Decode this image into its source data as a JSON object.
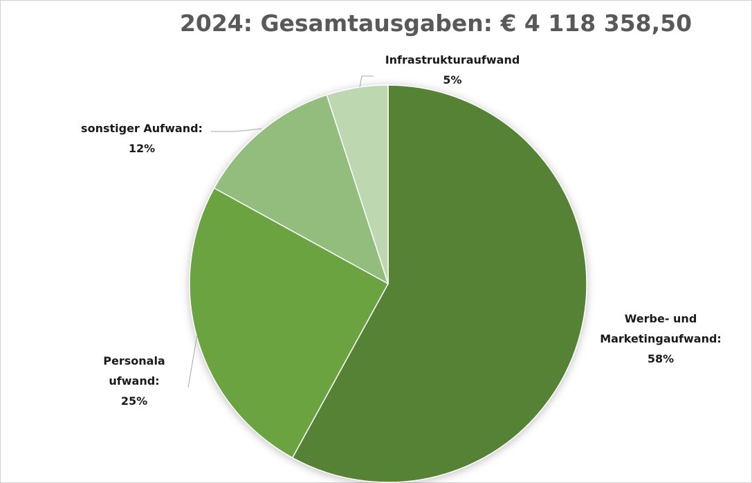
{
  "chart_data": {
    "type": "pie",
    "title": "2024: Gesamtausgaben: € 4 118 358,50",
    "categories": [
      "Werbe- und Marketingaufwand:",
      "Personalaufwand:",
      "sonstiger Aufwand:",
      "Infrastrukturaufwand"
    ],
    "values": [
      58,
      25,
      12,
      5
    ],
    "value_labels": [
      "58%",
      "25%",
      "12%",
      "5%"
    ],
    "colors": [
      "#548235",
      "#6aa341",
      "#93bd7b",
      "#bdd7b0"
    ]
  }
}
